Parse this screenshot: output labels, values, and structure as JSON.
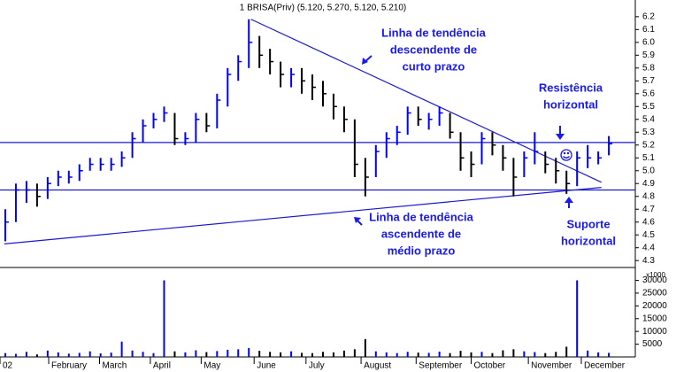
{
  "chart_data": {
    "type": "hlc",
    "title": "1 BRISA(Priv) (5.120, 5.270, 5.120, 5.210)",
    "x": [
      0,
      1,
      2,
      3,
      4,
      5,
      6,
      7,
      8,
      9,
      10,
      11,
      12,
      13,
      14,
      15,
      16,
      17,
      18,
      19,
      20,
      21,
      22,
      23,
      24,
      25,
      26,
      27,
      28,
      29,
      30,
      31,
      32,
      33,
      34,
      35,
      36,
      37,
      38,
      39,
      40,
      41,
      42,
      43,
      44,
      45,
      46,
      47,
      48,
      49,
      50,
      51,
      52,
      53,
      54,
      55,
      56,
      57
    ],
    "high": [
      4.7,
      4.9,
      4.92,
      4.9,
      4.95,
      5.0,
      5.0,
      5.05,
      5.1,
      5.1,
      5.1,
      5.15,
      5.3,
      5.4,
      5.45,
      5.5,
      5.45,
      5.3,
      5.45,
      5.45,
      5.6,
      5.8,
      5.9,
      6.18,
      6.05,
      5.95,
      5.85,
      5.8,
      5.8,
      5.75,
      5.7,
      5.6,
      5.5,
      5.4,
      5.1,
      5.2,
      5.3,
      5.35,
      5.5,
      5.5,
      5.45,
      5.5,
      5.45,
      5.3,
      5.15,
      5.3,
      5.3,
      5.2,
      5.1,
      5.15,
      5.3,
      5.15,
      5.1,
      5.0,
      5.15,
      5.2,
      5.15,
      5.27
    ],
    "low": [
      4.45,
      4.6,
      4.75,
      4.72,
      4.78,
      4.88,
      4.9,
      4.92,
      5.0,
      5.0,
      5.0,
      5.03,
      5.1,
      5.22,
      5.33,
      5.38,
      5.2,
      5.2,
      5.22,
      5.3,
      5.33,
      5.5,
      5.7,
      5.8,
      5.8,
      5.75,
      5.65,
      5.65,
      5.6,
      5.55,
      5.5,
      5.4,
      5.3,
      4.95,
      4.8,
      4.95,
      5.1,
      5.2,
      5.28,
      5.35,
      5.32,
      5.35,
      5.25,
      5.0,
      4.95,
      5.05,
      5.12,
      5.0,
      4.8,
      4.95,
      5.05,
      4.98,
      4.9,
      4.82,
      4.88,
      5.02,
      5.05,
      5.12
    ],
    "close": [
      4.6,
      4.85,
      4.85,
      4.8,
      4.9,
      4.95,
      4.95,
      5.0,
      5.05,
      5.05,
      5.05,
      5.1,
      5.25,
      5.35,
      5.4,
      5.45,
      5.25,
      5.25,
      5.4,
      5.35,
      5.55,
      5.75,
      5.85,
      6.0,
      5.9,
      5.85,
      5.75,
      5.75,
      5.7,
      5.65,
      5.6,
      5.5,
      5.4,
      5.05,
      4.95,
      5.15,
      5.25,
      5.3,
      5.45,
      5.4,
      5.4,
      5.45,
      5.3,
      5.1,
      5.05,
      5.25,
      5.2,
      5.1,
      4.95,
      5.1,
      5.15,
      5.05,
      5.0,
      4.9,
      5.1,
      5.1,
      5.1,
      5.21
    ],
    "volume": [
      1500,
      1200,
      2000,
      1000,
      2500,
      1800,
      1300,
      1600,
      2200,
      1400,
      1700,
      6000,
      2500,
      2000,
      1500,
      30000,
      2200,
      1800,
      2600,
      1900,
      2300,
      2800,
      3000,
      3500,
      2400,
      2000,
      1800,
      2200,
      1600,
      1500,
      2000,
      1800,
      2500,
      3000,
      7000,
      2200,
      1800,
      1500,
      2000,
      1700,
      1600,
      2100,
      1500,
      2400,
      1800,
      2000,
      1500,
      2600,
      3000,
      2200,
      1900,
      1500,
      2000,
      4000,
      30000,
      2500,
      1800,
      1600
    ],
    "up_color": "#0000ff",
    "down_color": "#000000",
    "xlim": [
      -0.5,
      59.5
    ],
    "xticks": [
      {
        "value": -0.5,
        "label": "02"
      },
      {
        "value": 4.1,
        "label": "February"
      },
      {
        "value": 8.9,
        "label": "March"
      },
      {
        "value": 13.7,
        "label": "April"
      },
      {
        "value": 18.5,
        "label": "May"
      },
      {
        "value": 23.5,
        "label": "June"
      },
      {
        "value": 28.4,
        "label": "July"
      },
      {
        "value": 33.6,
        "label": "August"
      },
      {
        "value": 38.8,
        "label": "September"
      },
      {
        "value": 44,
        "label": "October"
      },
      {
        "value": 49.4,
        "label": "November"
      },
      {
        "value": 54.4,
        "label": "December"
      }
    ],
    "ylim": [
      4.26,
      6.33
    ],
    "yticks": [
      4.3,
      4.4,
      4.5,
      4.6,
      4.7,
      4.8,
      4.9,
      {
        "value": 5,
        "label": "5.0"
      },
      5.1,
      5.2,
      5.3,
      5.4,
      5.5,
      5.6,
      5.7,
      5.8,
      5.9,
      {
        "value": 6,
        "label": "6.0"
      },
      6.1,
      6.2
    ],
    "y2lim": [
      0,
      34000
    ],
    "y2ticks": [
      5000,
      10000,
      15000,
      20000,
      25000,
      30000
    ],
    "y2_label": "x1000",
    "hlines": [
      5.22,
      4.85
    ],
    "trendlines": [
      {
        "x": [
          23.2,
          56.3
        ],
        "y": [
          6.18,
          4.91
        ]
      },
      {
        "x": [
          -0.1,
          56.3
        ],
        "y": [
          4.43,
          4.87
        ]
      }
    ],
    "line_color": "#1a1acc",
    "annotations": [
      {
        "lines": [
          "Linha de tendência",
          "descendente de",
          "curto prazo"
        ]
      },
      {
        "lines": [
          "Resistência",
          "horizontal"
        ]
      },
      {
        "lines": [
          "Linha de tendência",
          "ascendente de",
          "médio prazo"
        ]
      },
      {
        "lines": [
          "Suporte",
          "horizontal"
        ]
      }
    ]
  }
}
